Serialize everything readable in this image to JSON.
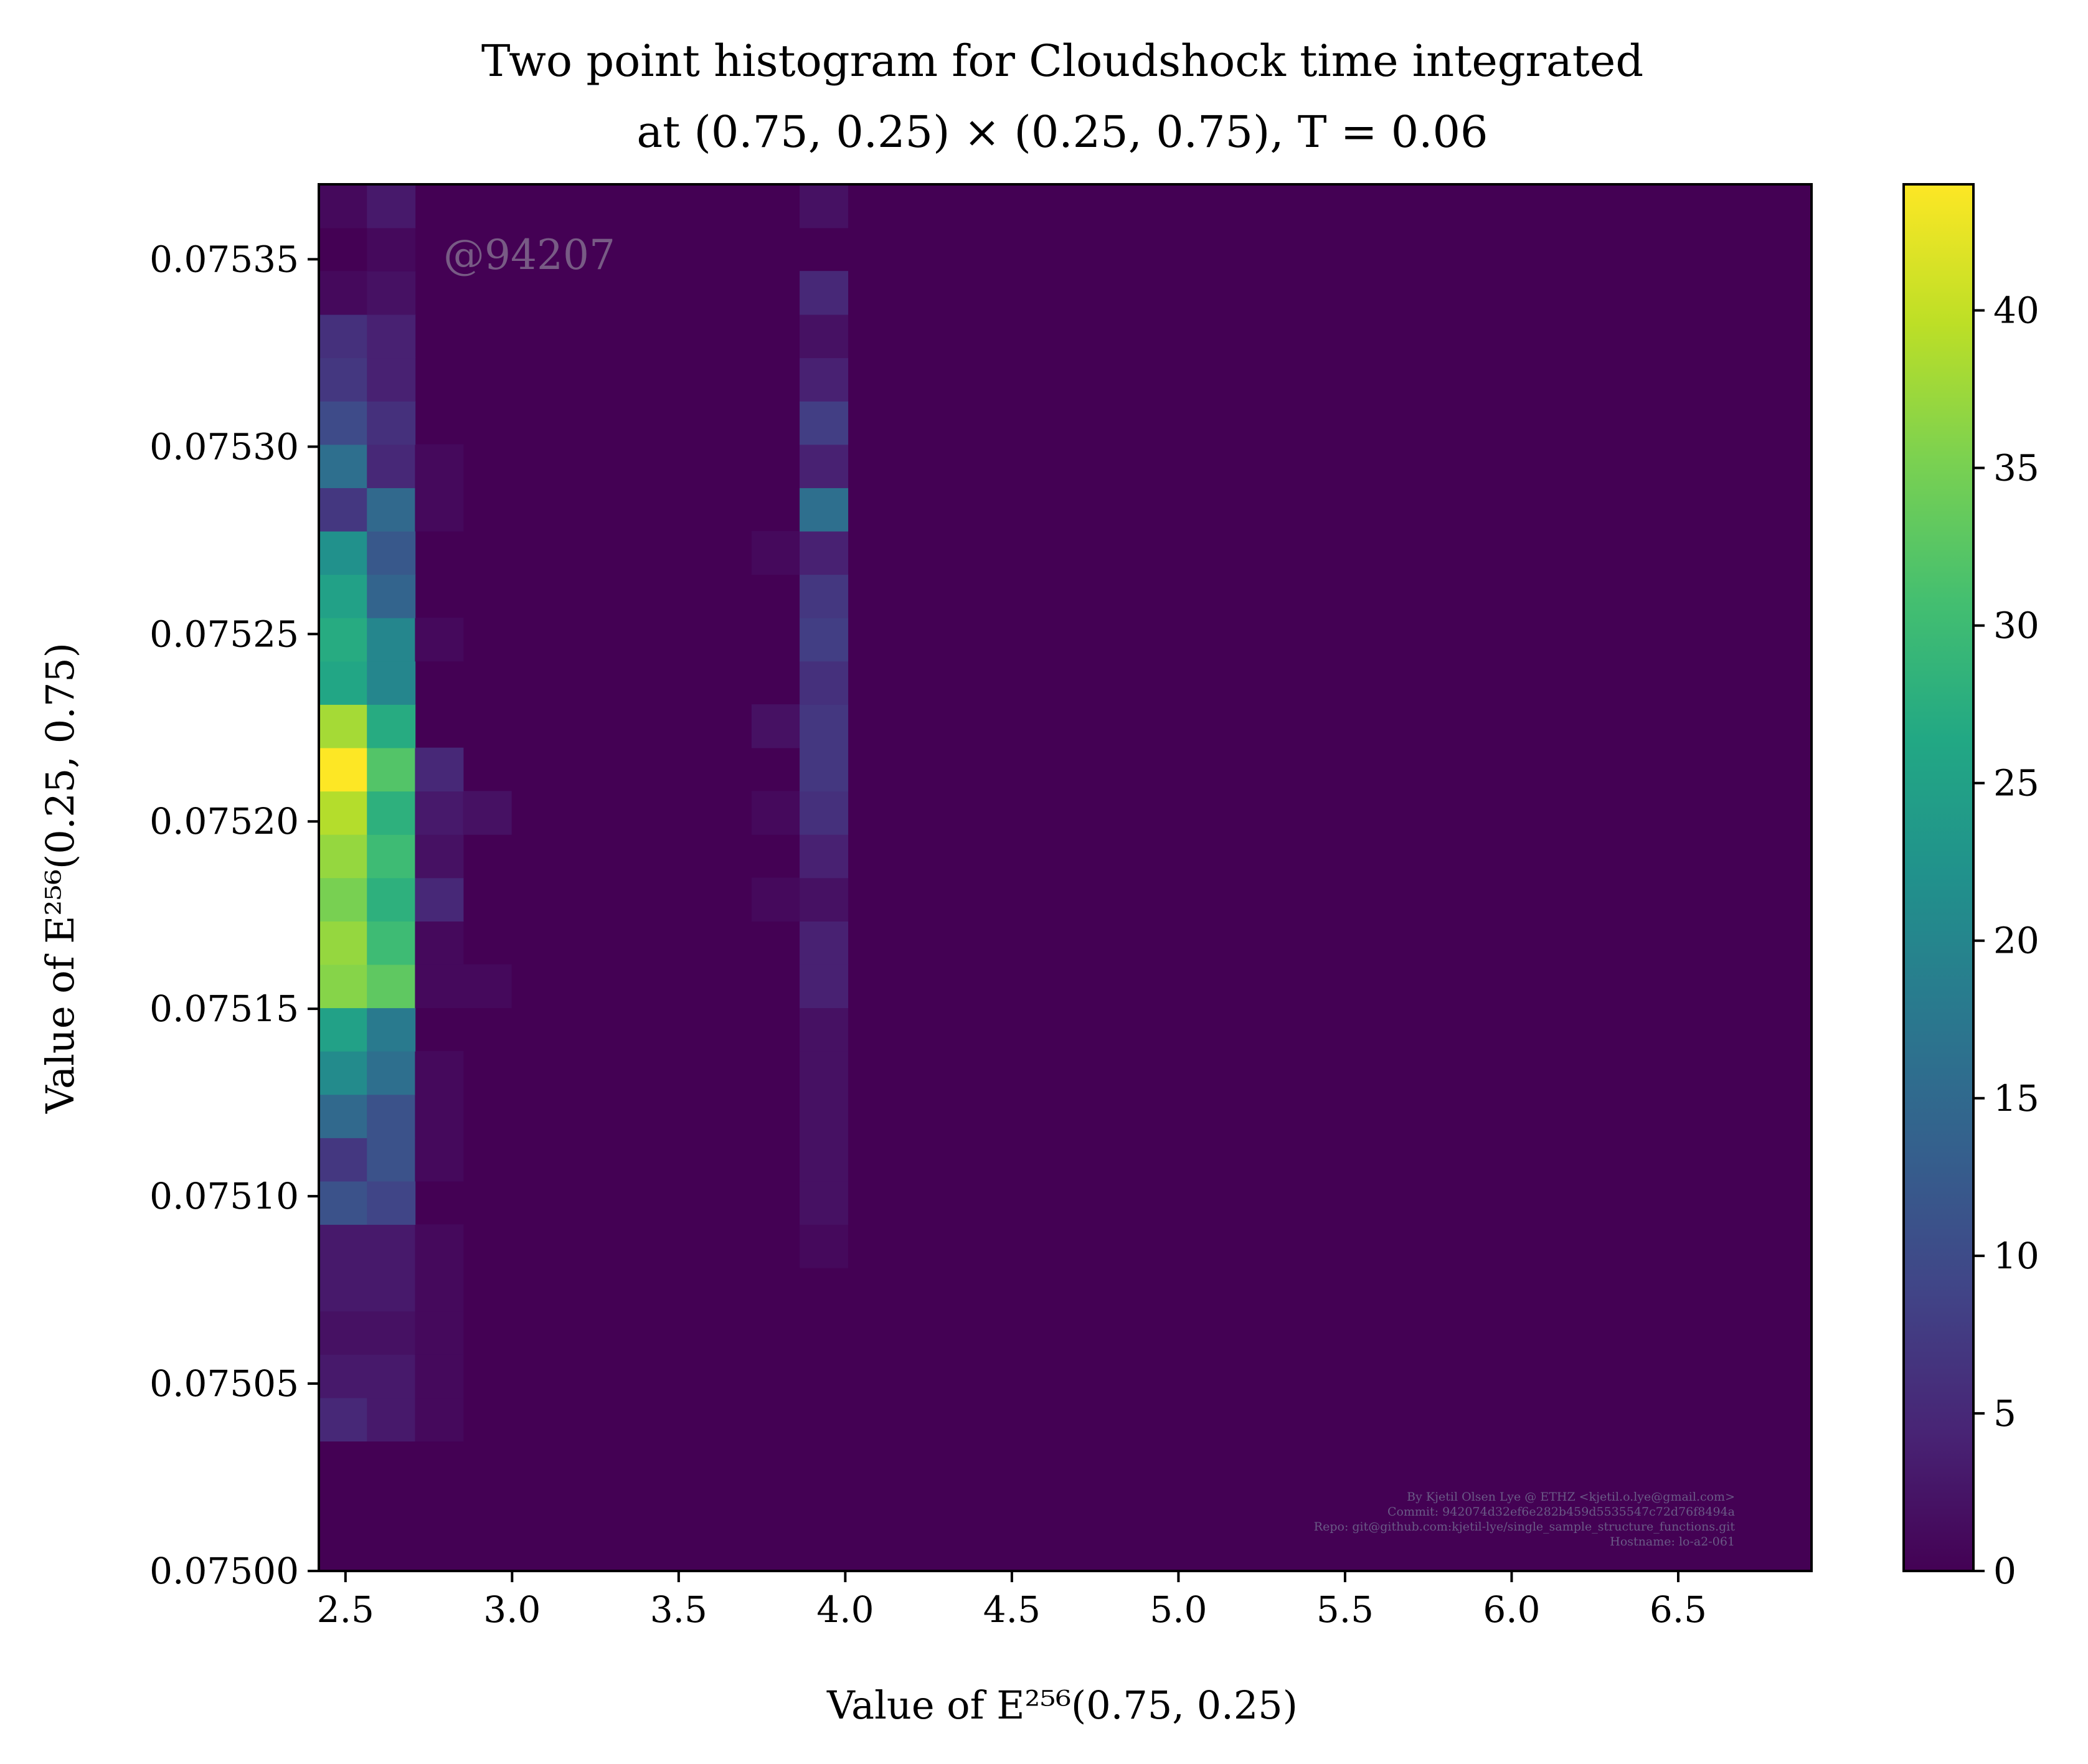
{
  "chart_data": {
    "type": "heatmap",
    "title": [
      "Two point histogram for Cloudshock time integrated",
      "at (0.75, 0.25) × (0.25, 0.75), T = 0.06"
    ],
    "xlabel": "Value of E²⁵⁶(0.75, 0.25)",
    "ylabel": "Value of E²⁵⁶(0.25, 0.75)",
    "xlim": [
      2.42,
      6.9
    ],
    "ylim": [
      0.075,
      0.07537
    ],
    "x_bins": {
      "start": 2.42,
      "width": 0.1443,
      "count": 31
    },
    "y_bins": {
      "start": 0.075,
      "width": 1.15625e-05,
      "count": 32
    },
    "xticks": [
      {
        "v": 2.5,
        "label": "2.5"
      },
      {
        "v": 3.0,
        "label": "3.0"
      },
      {
        "v": 3.5,
        "label": "3.5"
      },
      {
        "v": 4.0,
        "label": "4.0"
      },
      {
        "v": 4.5,
        "label": "4.5"
      },
      {
        "v": 5.0,
        "label": "5.0"
      },
      {
        "v": 5.5,
        "label": "5.5"
      },
      {
        "v": 6.0,
        "label": "6.0"
      },
      {
        "v": 6.5,
        "label": "6.5"
      }
    ],
    "yticks": [
      {
        "v": 0.075,
        "label": "0.07500"
      },
      {
        "v": 0.07505,
        "label": "0.07505"
      },
      {
        "v": 0.0751,
        "label": "0.07510"
      },
      {
        "v": 0.07515,
        "label": "0.07515"
      },
      {
        "v": 0.0752,
        "label": "0.07520"
      },
      {
        "v": 0.07525,
        "label": "0.07525"
      },
      {
        "v": 0.0753,
        "label": "0.07530"
      },
      {
        "v": 0.07535,
        "label": "0.07535"
      }
    ],
    "colorbar": {
      "range": [
        0,
        44
      ],
      "ticks": [
        {
          "v": 0,
          "label": "0"
        },
        {
          "v": 5,
          "label": "5"
        },
        {
          "v": 10,
          "label": "10"
        },
        {
          "v": 15,
          "label": "15"
        },
        {
          "v": 20,
          "label": "20"
        },
        {
          "v": 25,
          "label": "25"
        },
        {
          "v": 30,
          "label": "30"
        },
        {
          "v": 35,
          "label": "35"
        },
        {
          "v": 40,
          "label": "40"
        }
      ],
      "colormap": "viridis"
    },
    "cells": [
      [
        0,
        3,
        5
      ],
      [
        1,
        3,
        3
      ],
      [
        2,
        3,
        1
      ],
      [
        0,
        4,
        3
      ],
      [
        1,
        4,
        3
      ],
      [
        2,
        4,
        1
      ],
      [
        0,
        5,
        2
      ],
      [
        1,
        5,
        2
      ],
      [
        2,
        5,
        1
      ],
      [
        0,
        6,
        3
      ],
      [
        1,
        6,
        3
      ],
      [
        2,
        6,
        1
      ],
      [
        0,
        7,
        3
      ],
      [
        1,
        7,
        3
      ],
      [
        2,
        7,
        1
      ],
      [
        0,
        8,
        11
      ],
      [
        1,
        8,
        9
      ],
      [
        0,
        9,
        7
      ],
      [
        1,
        9,
        11
      ],
      [
        2,
        9,
        1
      ],
      [
        0,
        10,
        15
      ],
      [
        1,
        10,
        11
      ],
      [
        2,
        10,
        1
      ],
      [
        0,
        11,
        21
      ],
      [
        1,
        11,
        16
      ],
      [
        2,
        11,
        1
      ],
      [
        0,
        12,
        25
      ],
      [
        1,
        12,
        18
      ],
      [
        0,
        13,
        36
      ],
      [
        1,
        13,
        33
      ],
      [
        2,
        13,
        1
      ],
      [
        3,
        13,
        1
      ],
      [
        0,
        14,
        37
      ],
      [
        1,
        14,
        30
      ],
      [
        2,
        14,
        1
      ],
      [
        0,
        15,
        35
      ],
      [
        1,
        15,
        28
      ],
      [
        2,
        15,
        5
      ],
      [
        0,
        16,
        37
      ],
      [
        1,
        16,
        30
      ],
      [
        2,
        16,
        2
      ],
      [
        0,
        17,
        39
      ],
      [
        1,
        17,
        28
      ],
      [
        2,
        17,
        3
      ],
      [
        3,
        17,
        2
      ],
      [
        0,
        18,
        44
      ],
      [
        1,
        18,
        32
      ],
      [
        2,
        18,
        5
      ],
      [
        0,
        19,
        38
      ],
      [
        1,
        19,
        27
      ],
      [
        0,
        20,
        26
      ],
      [
        1,
        20,
        20
      ],
      [
        0,
        21,
        27
      ],
      [
        1,
        21,
        20
      ],
      [
        2,
        21,
        1
      ],
      [
        0,
        22,
        25
      ],
      [
        1,
        22,
        14
      ],
      [
        0,
        23,
        22
      ],
      [
        1,
        23,
        12
      ],
      [
        0,
        24,
        7
      ],
      [
        1,
        24,
        15
      ],
      [
        2,
        24,
        1
      ],
      [
        0,
        25,
        16
      ],
      [
        1,
        25,
        5
      ],
      [
        2,
        25,
        1
      ],
      [
        0,
        26,
        10
      ],
      [
        1,
        26,
        6
      ],
      [
        0,
        27,
        7
      ],
      [
        1,
        27,
        4
      ],
      [
        0,
        28,
        6
      ],
      [
        1,
        28,
        4
      ],
      [
        0,
        29,
        1
      ],
      [
        1,
        29,
        2
      ],
      [
        0,
        30,
        0
      ],
      [
        1,
        30,
        1
      ],
      [
        0,
        31,
        1
      ],
      [
        1,
        31,
        3
      ],
      [
        9,
        15,
        1
      ],
      [
        10,
        15,
        1
      ],
      [
        9,
        17,
        1
      ],
      [
        9,
        19,
        2
      ],
      [
        9,
        23,
        1
      ],
      [
        10,
        7,
        1
      ],
      [
        10,
        8,
        2
      ],
      [
        10,
        9,
        2
      ],
      [
        10,
        10,
        2
      ],
      [
        10,
        11,
        2
      ],
      [
        10,
        12,
        2
      ],
      [
        10,
        13,
        4
      ],
      [
        10,
        14,
        4
      ],
      [
        10,
        15,
        2
      ],
      [
        10,
        16,
        4
      ],
      [
        10,
        17,
        6
      ],
      [
        10,
        18,
        7
      ],
      [
        10,
        19,
        7
      ],
      [
        10,
        20,
        6
      ],
      [
        10,
        21,
        8
      ],
      [
        10,
        22,
        7
      ],
      [
        10,
        23,
        4
      ],
      [
        10,
        24,
        16
      ],
      [
        10,
        25,
        4
      ],
      [
        10,
        26,
        8
      ],
      [
        10,
        27,
        4
      ],
      [
        10,
        28,
        2
      ],
      [
        10,
        29,
        5
      ],
      [
        10,
        31,
        2
      ]
    ]
  },
  "watermark": "@94207",
  "credits": [
    "By Kjetil Olsen Lye @ ETHZ <kjetil.o.lye@gmail.com>",
    "Commit: 942074d32ef6e282b459d5535547c72d76f8494a",
    "Repo: git@github.com:kjetil-lye/single_sample_structure_functions.git",
    "Hostname: lo-a2-061"
  ]
}
